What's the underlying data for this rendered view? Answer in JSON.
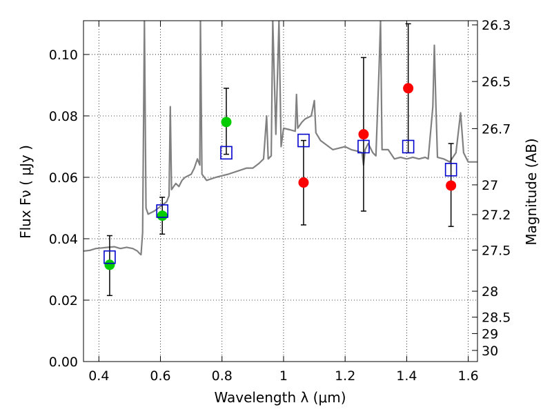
{
  "chart_data": {
    "type": "scatter",
    "xlabel": "Wavelength  λ (μm)",
    "ylabel": "Flux  Fν  ( μJy )",
    "ylabel_right": "Magnitude (AB)",
    "xlim": [
      0.35,
      1.63
    ],
    "ylim": [
      0.0,
      0.111
    ],
    "grid": true,
    "x_ticks": [
      0.4,
      0.6,
      0.8,
      1.0,
      1.2,
      1.4,
      1.6
    ],
    "x_tick_labels": [
      "0.4",
      "0.6",
      "0.8",
      "1",
      "1.2",
      "1.4",
      "1.6"
    ],
    "y_ticks": [
      0.0,
      0.02,
      0.04,
      0.06,
      0.08,
      0.1
    ],
    "y_tick_labels": [
      "0.00",
      "0.02",
      "0.04",
      "0.06",
      "0.08",
      "0.10"
    ],
    "right_ticks": [
      {
        "mag": 26.3,
        "label": "26.3"
      },
      {
        "mag": 26.5,
        "label": "26.5"
      },
      {
        "mag": 26.7,
        "label": "26.7"
      },
      {
        "mag": 27.0,
        "label": "27"
      },
      {
        "mag": 27.2,
        "label": "27.2"
      },
      {
        "mag": 27.5,
        "label": "27.5"
      },
      {
        "mag": 28.0,
        "label": "28"
      },
      {
        "mag": 28.5,
        "label": "28.5"
      },
      {
        "mag": 29.0,
        "label": "29"
      },
      {
        "mag": 30.0,
        "label": "30"
      }
    ],
    "template_spectrum": {
      "color": "#808080",
      "points": [
        [
          0.35,
          0.036
        ],
        [
          0.37,
          0.0362
        ],
        [
          0.39,
          0.0368
        ],
        [
          0.41,
          0.037
        ],
        [
          0.43,
          0.0372
        ],
        [
          0.45,
          0.0374
        ],
        [
          0.47,
          0.0368
        ],
        [
          0.49,
          0.0372
        ],
        [
          0.51,
          0.0368
        ],
        [
          0.525,
          0.036
        ],
        [
          0.532,
          0.0352
        ],
        [
          0.537,
          0.0348
        ],
        [
          0.542,
          0.042
        ],
        [
          0.548,
          0.111
        ],
        [
          0.553,
          0.05
        ],
        [
          0.56,
          0.048
        ],
        [
          0.58,
          0.049
        ],
        [
          0.6,
          0.0505
        ],
        [
          0.62,
          0.052
        ],
        [
          0.628,
          0.054
        ],
        [
          0.632,
          0.083
        ],
        [
          0.636,
          0.056
        ],
        [
          0.65,
          0.058
        ],
        [
          0.66,
          0.057
        ],
        [
          0.67,
          0.059
        ],
        [
          0.68,
          0.06
        ],
        [
          0.7,
          0.061
        ],
        [
          0.71,
          0.063
        ],
        [
          0.72,
          0.066
        ],
        [
          0.728,
          0.064
        ],
        [
          0.73,
          0.111
        ],
        [
          0.735,
          0.061
        ],
        [
          0.75,
          0.059
        ],
        [
          0.78,
          0.06
        ],
        [
          0.8,
          0.0605
        ],
        [
          0.82,
          0.061
        ],
        [
          0.85,
          0.062
        ],
        [
          0.88,
          0.063
        ],
        [
          0.9,
          0.063
        ],
        [
          0.92,
          0.0645
        ],
        [
          0.935,
          0.066
        ],
        [
          0.945,
          0.08
        ],
        [
          0.95,
          0.066
        ],
        [
          0.96,
          0.067
        ],
        [
          0.965,
          0.111
        ],
        [
          0.975,
          0.074
        ],
        [
          0.985,
          0.111
        ],
        [
          0.992,
          0.07
        ],
        [
          1.0,
          0.076
        ],
        [
          1.02,
          0.0755
        ],
        [
          1.038,
          0.075
        ],
        [
          1.042,
          0.087
        ],
        [
          1.046,
          0.076
        ],
        [
          1.06,
          0.078
        ],
        [
          1.07,
          0.079
        ],
        [
          1.09,
          0.08
        ],
        [
          1.1,
          0.085
        ],
        [
          1.105,
          0.0745
        ],
        [
          1.12,
          0.072
        ],
        [
          1.14,
          0.0705
        ],
        [
          1.16,
          0.069
        ],
        [
          1.18,
          0.0695
        ],
        [
          1.2,
          0.07
        ],
        [
          1.22,
          0.069
        ],
        [
          1.24,
          0.0685
        ],
        [
          1.255,
          0.068
        ],
        [
          1.26,
          0.064
        ],
        [
          1.265,
          0.069
        ],
        [
          1.275,
          0.071
        ],
        [
          1.29,
          0.068
        ],
        [
          1.3,
          0.067
        ],
        [
          1.31,
          0.095
        ],
        [
          1.315,
          0.111
        ],
        [
          1.32,
          0.069
        ],
        [
          1.34,
          0.069
        ],
        [
          1.36,
          0.066
        ],
        [
          1.38,
          0.0665
        ],
        [
          1.4,
          0.066
        ],
        [
          1.42,
          0.0665
        ],
        [
          1.44,
          0.066
        ],
        [
          1.46,
          0.0665
        ],
        [
          1.47,
          0.066
        ],
        [
          1.485,
          0.083
        ],
        [
          1.49,
          0.103
        ],
        [
          1.495,
          0.083
        ],
        [
          1.5,
          0.0665
        ],
        [
          1.52,
          0.066
        ],
        [
          1.54,
          0.065
        ],
        [
          1.56,
          0.068
        ],
        [
          1.575,
          0.081
        ],
        [
          1.585,
          0.068
        ],
        [
          1.6,
          0.065
        ],
        [
          1.63,
          0.065
        ]
      ]
    },
    "series": [
      {
        "marker": "circle",
        "color": "#00cc00",
        "points": [
          {
            "x": 0.435,
            "y": 0.0315
          },
          {
            "x": 0.606,
            "y": 0.0475
          },
          {
            "x": 0.814,
            "y": 0.078
          }
        ]
      },
      {
        "marker": "circle",
        "color": "#ff0000",
        "points": [
          {
            "x": 1.065,
            "y": 0.0583
          },
          {
            "x": 1.26,
            "y": 0.074
          },
          {
            "x": 1.405,
            "y": 0.089
          },
          {
            "x": 1.544,
            "y": 0.0573
          }
        ]
      },
      {
        "marker": "square",
        "color": "#0000cc",
        "points": [
          {
            "x": 0.435,
            "y": 0.034
          },
          {
            "x": 0.606,
            "y": 0.049
          },
          {
            "x": 0.814,
            "y": 0.068
          },
          {
            "x": 1.065,
            "y": 0.072
          },
          {
            "x": 1.26,
            "y": 0.07
          },
          {
            "x": 1.405,
            "y": 0.07
          },
          {
            "x": 1.544,
            "y": 0.0625
          }
        ]
      }
    ],
    "error_bars": [
      {
        "x": 0.435,
        "low": 0.0215,
        "high": 0.041
      },
      {
        "x": 0.606,
        "low": 0.0415,
        "high": 0.0535
      },
      {
        "x": 0.814,
        "low": 0.0675,
        "high": 0.089
      },
      {
        "x": 1.065,
        "low": 0.0445,
        "high": 0.072
      },
      {
        "x": 1.26,
        "low": 0.049,
        "high": 0.099
      },
      {
        "x": 1.405,
        "low": 0.068,
        "high": 0.11
      },
      {
        "x": 1.544,
        "low": 0.044,
        "high": 0.071
      }
    ]
  }
}
